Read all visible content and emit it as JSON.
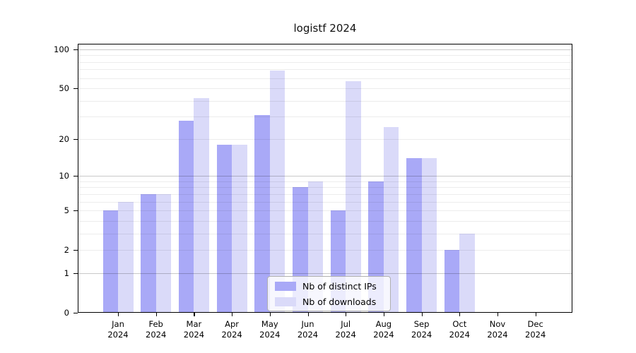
{
  "title": "logistf 2024",
  "chart_data": {
    "type": "bar",
    "title": "logistf 2024",
    "xlabel": "",
    "ylabel": "",
    "categories": [
      "Jan",
      "Feb",
      "Mar",
      "Apr",
      "May",
      "Jun",
      "Jul",
      "Aug",
      "Sep",
      "Oct",
      "Nov",
      "Dec"
    ],
    "x_year_line": "2024",
    "series": [
      {
        "name": "Nb of distinct IPs",
        "color": "#a9a9f7",
        "values": [
          5,
          7,
          28,
          18,
          31,
          8,
          5,
          9,
          14,
          2,
          0,
          0
        ]
      },
      {
        "name": "Nb of downloads",
        "color": "#dadaf9",
        "values": [
          6,
          7,
          42,
          18,
          69,
          9,
          57,
          25,
          14,
          3,
          0,
          0
        ]
      }
    ],
    "y_scale": "log1p",
    "ylim": [
      0,
      100
    ],
    "y_ticks": [
      0,
      1,
      2,
      5,
      10,
      20,
      50,
      100
    ],
    "grid_major": [
      1,
      10,
      100
    ],
    "grid_minor": [
      2,
      3,
      4,
      5,
      6,
      7,
      8,
      9,
      20,
      30,
      40,
      50,
      60,
      70,
      80,
      90
    ],
    "grid": "horizontal major+minor",
    "legend_position": "inside-bottom-center"
  },
  "colors": {
    "grid_major": "rgba(0,0,0,0.21)",
    "grid_minor": "rgba(0,0,0,0.075)",
    "axis": "#000000"
  }
}
